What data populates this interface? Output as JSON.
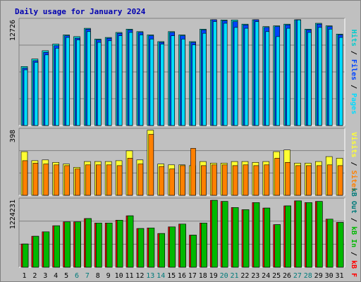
{
  "chart_data": {
    "type": "bar",
    "title": "Daily usage for January 2024",
    "colors": {
      "title": "#0000b0",
      "hits": "#00cccc",
      "files": "#0044ff",
      "pages": "#00dcff",
      "visits": "#ffff33",
      "sites": "#ff8000",
      "kbin": "#00b800",
      "kbout": "#007a7a",
      "kbf": "#ff0000",
      "weekend": "#007a7a",
      "weekday": "#000000"
    },
    "categories": [
      "1",
      "2",
      "3",
      "4",
      "5",
      "6",
      "7",
      "8",
      "9",
      "10",
      "11",
      "12",
      "13",
      "14",
      "15",
      "16",
      "17",
      "18",
      "19",
      "20",
      "21",
      "22",
      "23",
      "24",
      "25",
      "26",
      "27",
      "28",
      "29",
      "30",
      "31"
    ],
    "weekend_days": [
      "6",
      "7",
      "13",
      "14",
      "20",
      "21",
      "27",
      "28"
    ],
    "panels": [
      {
        "id": "hits-files-pages",
        "ymax_label": "12726",
        "ymax": 12726,
        "legend": [
          {
            "key": "pages",
            "text": "Pages"
          },
          {
            "key": "sep",
            "text": " / "
          },
          {
            "key": "files",
            "text": "Files"
          },
          {
            "key": "sep",
            "text": " / "
          },
          {
            "key": "hits",
            "text": "Hits"
          }
        ],
        "series": [
          {
            "name": "Hits",
            "color_key": "hits",
            "values": [
              7100,
              8000,
              9000,
              9800,
              10900,
              10700,
              11700,
              10400,
              10600,
              11200,
              11600,
              11300,
              10900,
              10100,
              11300,
              10900,
              10100,
              11600,
              13000,
              12700,
              12700,
              12200,
              12900,
              11900,
              12000,
              12200,
              13000,
              11600,
              12300,
              12000,
              11000
            ]
          },
          {
            "name": "Files",
            "color_key": "files",
            "values": [
              6900,
              7800,
              8800,
              9600,
              10800,
              10500,
              11600,
              10300,
              10500,
              11100,
              11500,
              11200,
              10800,
              10000,
              11200,
              10800,
              10000,
              11500,
              12800,
              12600,
              12500,
              12100,
              12800,
              11800,
              11900,
              12100,
              12800,
              11500,
              12200,
              11900,
              10900
            ]
          },
          {
            "name": "Pages",
            "color_key": "pages",
            "values": [
              6700,
              7600,
              8500,
              9300,
              10600,
              10300,
              11300,
              10000,
              10200,
              10800,
              11200,
              10900,
              10400,
              9800,
              10800,
              10400,
              9700,
              11100,
              12500,
              12300,
              11800,
              11700,
              12500,
              11300,
              10700,
              11700,
              12700,
              11200,
              11800,
              11600,
              10600
            ]
          }
        ]
      },
      {
        "id": "visits-sites",
        "ymax_label": "398",
        "ymax": 398,
        "legend": [
          {
            "key": "sites",
            "text": "Sites"
          },
          {
            "key": "sep",
            "text": " / "
          },
          {
            "key": "visits",
            "text": "Visits"
          }
        ],
        "series": [
          {
            "name": "Visits",
            "color_key": "visits",
            "values": [
              265,
              210,
              215,
              200,
              190,
              170,
              205,
              205,
              205,
              210,
              270,
              215,
              395,
              190,
              185,
              185,
              180,
              205,
              195,
              195,
              205,
              205,
              200,
              205,
              265,
              275,
              195,
              195,
              205,
              235,
              225
            ]
          },
          {
            "name": "Sites",
            "color_key": "sites",
            "values": [
              210,
              195,
              190,
              185,
              180,
              160,
              185,
              185,
              185,
              180,
              225,
              190,
              370,
              175,
              160,
              180,
              285,
              180,
              185,
              185,
              180,
              185,
              180,
              185,
              225,
              200,
              180,
              180,
              180,
              185,
              180
            ]
          }
        ]
      },
      {
        "id": "kbf-kbin-kbout",
        "ymax_label": "1224231",
        "ymax": 1224231,
        "legend": [
          {
            "key": "kbf",
            "text": "kB F"
          },
          {
            "key": "sep",
            "text": " / "
          },
          {
            "key": "kbin",
            "text": "kB In"
          },
          {
            "key": "sep",
            "text": " / "
          },
          {
            "key": "kbout",
            "text": "kB Out"
          }
        ],
        "series": [
          {
            "name": "kB F",
            "color_key": "kbf",
            "values": [
              420000,
              560000,
              640000,
              750000,
              820000,
              820000,
              880000,
              800000,
              800000,
              850000,
              930000,
              700000,
              710000,
              610000,
              730000,
              780000,
              580000,
              800000,
              1210000,
              1190000,
              1080000,
              1040000,
              1170000,
              1070000,
              770000,
              1110000,
              1200000,
              1170000,
              1190000,
              870000,
              810000
            ]
          },
          {
            "name": "kB In",
            "color_key": "kbin",
            "values": [
              420000,
              560000,
              640000,
              750000,
              820000,
              820000,
              880000,
              800000,
              800000,
              850000,
              930000,
              700000,
              710000,
              610000,
              730000,
              780000,
              580000,
              800000,
              1210000,
              1190000,
              1080000,
              1040000,
              1170000,
              1070000,
              770000,
              1110000,
              1200000,
              1170000,
              1190000,
              870000,
              810000
            ]
          }
        ]
      }
    ],
    "grid": true,
    "xlabel": "",
    "ylabel": ""
  }
}
